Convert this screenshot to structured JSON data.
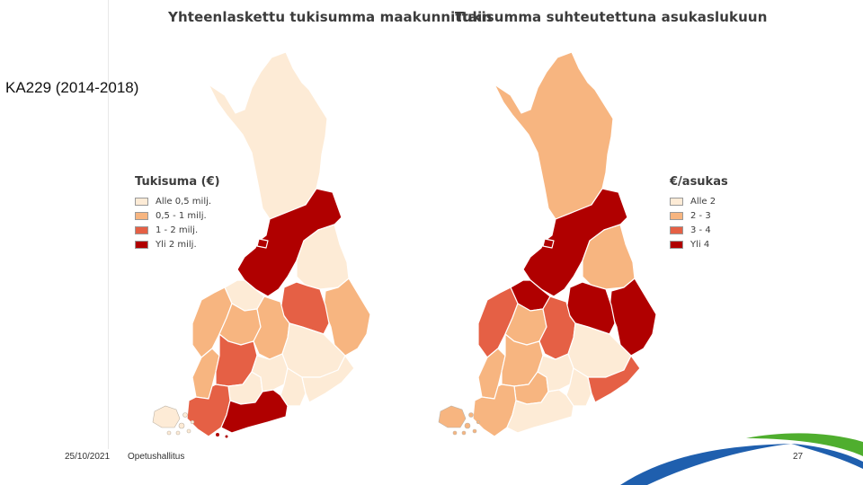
{
  "slide_title": "KA229 (2014-2018)",
  "map_left": {
    "title": "Yhteenlaskettu tukisumma maakunnittain",
    "legend_title": "Tukisuma (€)",
    "legend": [
      {
        "label": "Alle 0,5 milj.",
        "color": "#fdebd6"
      },
      {
        "label": "0,5 - 1 milj.",
        "color": "#f7b580"
      },
      {
        "label": "1 - 2 milj.",
        "color": "#e56045"
      },
      {
        "label": "Yli 2 milj.",
        "color": "#b00000"
      }
    ]
  },
  "map_right": {
    "title": "Tukisumma suhteutettuna asukaslukuun",
    "legend_title": "€/asukas",
    "legend": [
      {
        "label": "Alle 2",
        "color": "#fdebd6"
      },
      {
        "label": "2 - 3",
        "color": "#f7b580"
      },
      {
        "label": "3 - 4",
        "color": "#e56045"
      },
      {
        "label": "Yli 4",
        "color": "#b00000"
      }
    ]
  },
  "footer": {
    "date": "25/10/2021",
    "org": "Opetushallitus",
    "page": "27"
  }
}
